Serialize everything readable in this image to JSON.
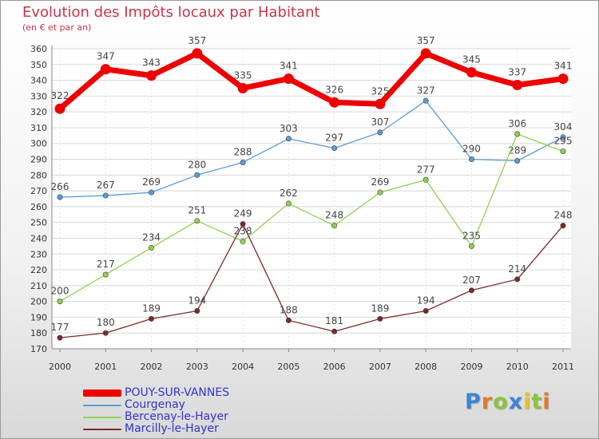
{
  "chart_data": {
    "type": "line",
    "title": "Evolution des Impôts locaux par Habitant",
    "subtitle": "(en € et par an)",
    "xlabel": "",
    "ylabel": "",
    "categories": [
      "2000",
      "2001",
      "2002",
      "2003",
      "2004",
      "2005",
      "2006",
      "2007",
      "2008",
      "2009",
      "2010",
      "2011"
    ],
    "ylim": [
      170,
      360
    ],
    "yticks": [
      170,
      180,
      190,
      200,
      210,
      220,
      230,
      240,
      250,
      260,
      270,
      280,
      290,
      300,
      310,
      320,
      330,
      340,
      350,
      360
    ],
    "grid": "horizontal",
    "legend_position": "bottom-left",
    "series": [
      {
        "name": "POUY-SUR-VANNES",
        "color": "#ee0000",
        "values": [
          322,
          347,
          343,
          357,
          335,
          341,
          326,
          325,
          357,
          345,
          337,
          341
        ]
      },
      {
        "name": "Courgenay",
        "color": "#5b9bd5",
        "values": [
          266,
          267,
          269,
          280,
          288,
          303,
          297,
          307,
          327,
          290,
          289,
          304
        ]
      },
      {
        "name": "Bercenay-le-Hayer",
        "color": "#92d050",
        "values": [
          200,
          217,
          234,
          251,
          238,
          262,
          248,
          269,
          277,
          235,
          306,
          295
        ]
      },
      {
        "name": "Marcilly-le-Hayer",
        "color": "#7b2a2a",
        "values": [
          177,
          180,
          189,
          194,
          249,
          188,
          181,
          189,
          194,
          207,
          214,
          248
        ]
      }
    ]
  },
  "legend_text_color": "#3333cc",
  "logo": {
    "letters": [
      "P",
      "r",
      "o",
      "x",
      "i",
      "t",
      "i"
    ],
    "colors": [
      "#3a86d4",
      "#e07b26",
      "#8bc43f",
      "#3a86d4",
      "#e8c12a",
      "#8bc43f",
      "#e07b26"
    ]
  }
}
